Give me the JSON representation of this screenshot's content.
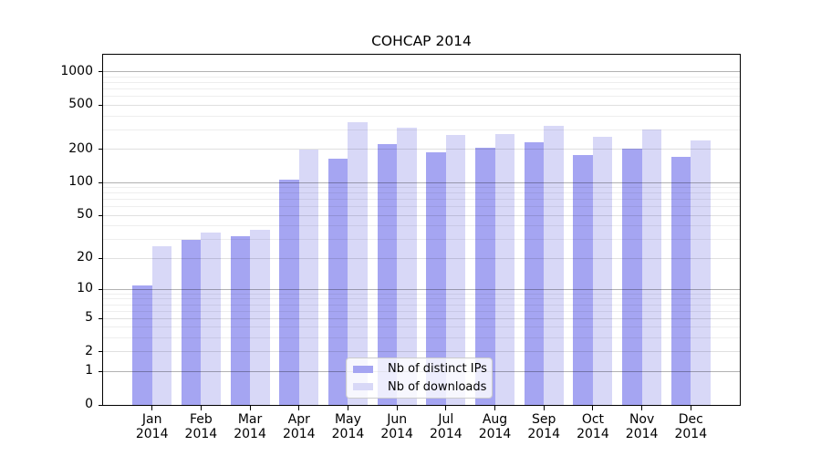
{
  "chart_data": {
    "type": "bar",
    "title": "COHCAP 2014",
    "categories": [
      "Jan 2014",
      "Feb 2014",
      "Mar 2014",
      "Apr 2014",
      "May 2014",
      "Jun 2014",
      "Jul 2014",
      "Aug 2014",
      "Sep 2014",
      "Oct 2014",
      "Nov 2014",
      "Dec 2014"
    ],
    "series": [
      {
        "name": "Nb of distinct IPs",
        "color": "#a5a5f2",
        "values": [
          11,
          30,
          32,
          106,
          165,
          222,
          188,
          207,
          232,
          178,
          201,
          170
        ]
      },
      {
        "name": "Nb of downloads",
        "color": "#d8d8f7",
        "values": [
          26,
          35,
          37,
          198,
          352,
          311,
          272,
          275,
          325,
          262,
          301,
          239
        ]
      }
    ],
    "xlabel": "",
    "ylabel": "",
    "y_axis": {
      "scale": "symlog",
      "ticks": [
        0,
        1,
        2,
        5,
        10,
        20,
        50,
        100,
        200,
        500,
        1000
      ],
      "minor_ticks": [
        3,
        4,
        6,
        7,
        8,
        9,
        30,
        40,
        60,
        70,
        80,
        90,
        300,
        400,
        600,
        700,
        800,
        900
      ],
      "max": 1430
    },
    "grid": true,
    "legend_position": "lower center"
  }
}
